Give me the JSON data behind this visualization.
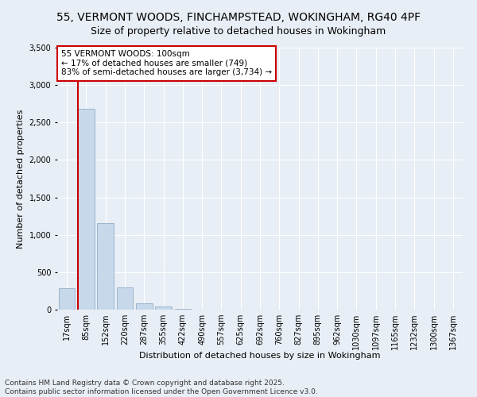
{
  "title1": "55, VERMONT WOODS, FINCHAMPSTEAD, WOKINGHAM, RG40 4PF",
  "title2": "Size of property relative to detached houses in Wokingham",
  "xlabel": "Distribution of detached houses by size in Wokingham",
  "ylabel": "Number of detached properties",
  "categories": [
    "17sqm",
    "85sqm",
    "152sqm",
    "220sqm",
    "287sqm",
    "355sqm",
    "422sqm",
    "490sqm",
    "557sqm",
    "625sqm",
    "692sqm",
    "760sqm",
    "827sqm",
    "895sqm",
    "962sqm",
    "1030sqm",
    "1097sqm",
    "1165sqm",
    "1232sqm",
    "1300sqm",
    "1367sqm"
  ],
  "values": [
    290,
    2680,
    1160,
    295,
    90,
    40,
    15,
    0,
    0,
    0,
    0,
    0,
    0,
    0,
    0,
    0,
    0,
    0,
    0,
    0,
    0
  ],
  "bar_color": "#c8d8eb",
  "bar_edge_color": "#9ab5ce",
  "vline_x": 1.5,
  "vline_color": "#cc0000",
  "annotation_text": "55 VERMONT WOODS: 100sqm\n← 17% of detached houses are smaller (749)\n83% of semi-detached houses are larger (3,734) →",
  "annotation_box_color": "#ffffff",
  "annotation_box_edge_color": "#cc0000",
  "ylim": [
    0,
    3500
  ],
  "yticks": [
    0,
    500,
    1000,
    1500,
    2000,
    2500,
    3000,
    3500
  ],
  "footer_text": "Contains HM Land Registry data © Crown copyright and database right 2025.\nContains public sector information licensed under the Open Government Licence v3.0.",
  "bg_color": "#e8eef5",
  "grid_color": "#ffffff",
  "title_fontsize": 10,
  "subtitle_fontsize": 9,
  "label_fontsize": 8,
  "tick_fontsize": 7,
  "annotation_fontsize": 7.5,
  "footer_fontsize": 6.5
}
